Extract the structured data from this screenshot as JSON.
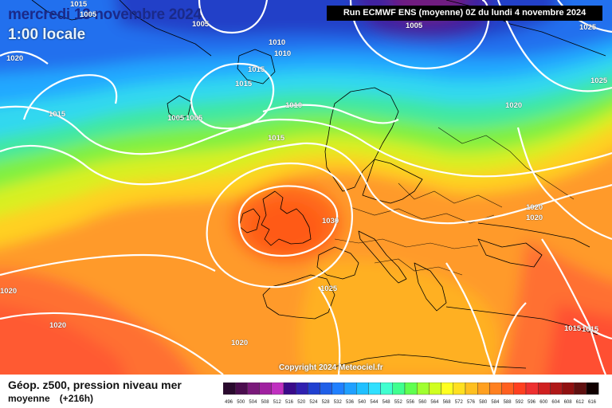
{
  "header": {
    "date": "mercredi 13 novembre 2024",
    "time": "1:00 locale",
    "run_info": "Run ECMWF ENS (moyenne) 0Z du lundi 4 novembre 2024"
  },
  "copyright": "Copyright 2024 Meteociel.fr",
  "footer": {
    "title": "Géop. z500, pression niveau mer",
    "subtitle": "moyenne",
    "lead": "(+216h)"
  },
  "isobar_labels": [
    "1015",
    "1005",
    "1005",
    "1025",
    "1020",
    "1010",
    "1010",
    "1005",
    "1025",
    "1015",
    "1015",
    "1015",
    "1010",
    "1020",
    "1005",
    "1005",
    "1015",
    "1030",
    "1020",
    "1020",
    "1020",
    "1025",
    "1020",
    "1020",
    "1015",
    "1015"
  ],
  "scale": {
    "ticks": [
      "496",
      "500",
      "504",
      "508",
      "512",
      "516",
      "520",
      "524",
      "528",
      "532",
      "536",
      "540",
      "544",
      "548",
      "552",
      "556",
      "560",
      "564",
      "568",
      "572",
      "576",
      "580",
      "584",
      "588",
      "592",
      "596",
      "600",
      "604",
      "608",
      "612",
      "616"
    ],
    "colors": [
      "#2a0a2e",
      "#4b0d4e",
      "#7a1a7a",
      "#a020a0",
      "#c030c0",
      "#3a0a8a",
      "#3020b0",
      "#2040d0",
      "#2060e8",
      "#2080ff",
      "#20a0ff",
      "#20c0ff",
      "#30e0ff",
      "#40ffd0",
      "#40ff90",
      "#60ff50",
      "#a0ff30",
      "#d0ff20",
      "#ffff20",
      "#ffe020",
      "#ffc020",
      "#ffa020",
      "#ff8020",
      "#ff6020",
      "#ff4020",
      "#ee3030",
      "#d02020",
      "#b01818",
      "#901010",
      "#601010",
      "#100000"
    ]
  },
  "colors": {
    "title": "#1a2a8a",
    "isobar": "#ffffff",
    "coastline": "#000000"
  }
}
